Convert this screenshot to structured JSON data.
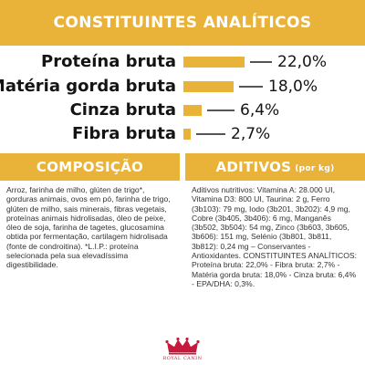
{
  "header": {
    "title": "CONSTITUINTES ANALÍTICOS"
  },
  "nutrients": [
    {
      "label": "Proteína bruta",
      "value": "22,0%",
      "percent": 22.0
    },
    {
      "label": "Matéria gorda bruta",
      "value": "18,0%",
      "percent": 18.0
    },
    {
      "label": "Cinza bruta",
      "value": "6,4%",
      "percent": 6.4
    },
    {
      "label": "Fibra bruta",
      "value": "2,7%",
      "percent": 2.7
    }
  ],
  "composicao": {
    "title": "COMPOSIÇÃO",
    "text": "Arroz, farinha de milho, glúten de trigo*, gorduras animais, ovos em pó, farinha de trigo, glúten de milho, sais minerais, fibras vegetais, proteínas animais hidrolisadas, óleo de peixe, óleo de soja, farinha de tagetes, glucosamina obtida por fermentação, cartilagem hidrolisada (fonte de condroitina). *L.I.P.: proteína selecionada pela sua elevadíssima digestibilidade."
  },
  "aditivos": {
    "title": "ADITIVOS",
    "unit": "(por kg)",
    "text": "Aditivos nutritivos: Vitamina A: 28.000 UI, Vitamina D3: 800 UI, Taurina: 2 g, Ferro (3b103): 79 mg, Iodo (3b201, 3b202): 4,9 mg, Cobre (3b405, 3b406): 6 mg, Manganês (3b502, 3b504): 54 mg, Zinco (3b603, 3b605, 3b606): 151 mg, Selénio (3b801, 3b811, 3b812): 0,24 mg – Conservantes - Antioxidantes. CONSTITUINTES ANALÍTICOS: Proteína bruta: 22,0% - Fibra bruta: 2,7% - Matéria gorda bruta: 18,0% - Cinza bruta: 6,4% - EPA/DHA: 0,3%."
  },
  "brand": {
    "logo_text": "ROYAL CANIN"
  },
  "colors": {
    "accent": "#e9b33a",
    "brand_red": "#c6193b",
    "text": "#141414"
  }
}
